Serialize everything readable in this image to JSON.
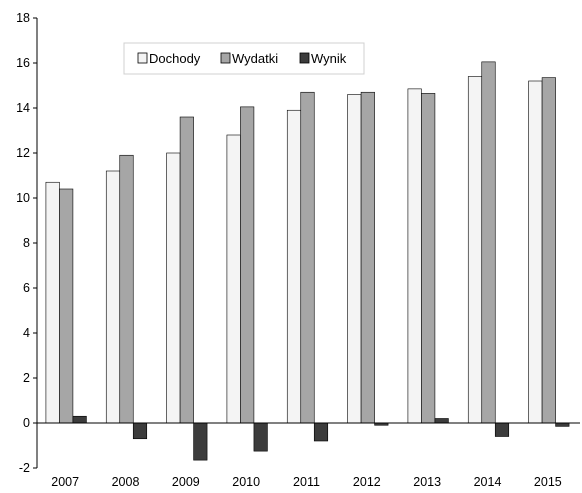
{
  "chart_data": {
    "type": "bar",
    "title": "",
    "xlabel": "",
    "ylabel": "",
    "categories": [
      "2007",
      "2008",
      "2009",
      "2010",
      "2011",
      "2012",
      "2013",
      "2014",
      "2015"
    ],
    "series": [
      {
        "name": "Dochody",
        "values": [
          10.7,
          11.2,
          12.0,
          12.8,
          13.9,
          14.6,
          14.85,
          15.4,
          15.2
        ],
        "color": "#f4f4f4"
      },
      {
        "name": "Wydatki",
        "values": [
          10.4,
          11.9,
          13.6,
          14.05,
          14.7,
          14.7,
          14.65,
          16.05,
          15.35
        ],
        "color": "#a6a6a6"
      },
      {
        "name": "Wynik",
        "values": [
          0.3,
          -0.7,
          -1.65,
          -1.25,
          -0.8,
          -0.1,
          0.2,
          -0.6,
          -0.15
        ],
        "color": "#3c3c3c"
      }
    ],
    "ylim": [
      -2,
      18
    ],
    "yticks": [
      "-2",
      "0",
      "2",
      "4",
      "6",
      "8",
      "10",
      "12",
      "14",
      "16",
      "18"
    ],
    "grid": false,
    "legend": "top-left inside plot"
  }
}
